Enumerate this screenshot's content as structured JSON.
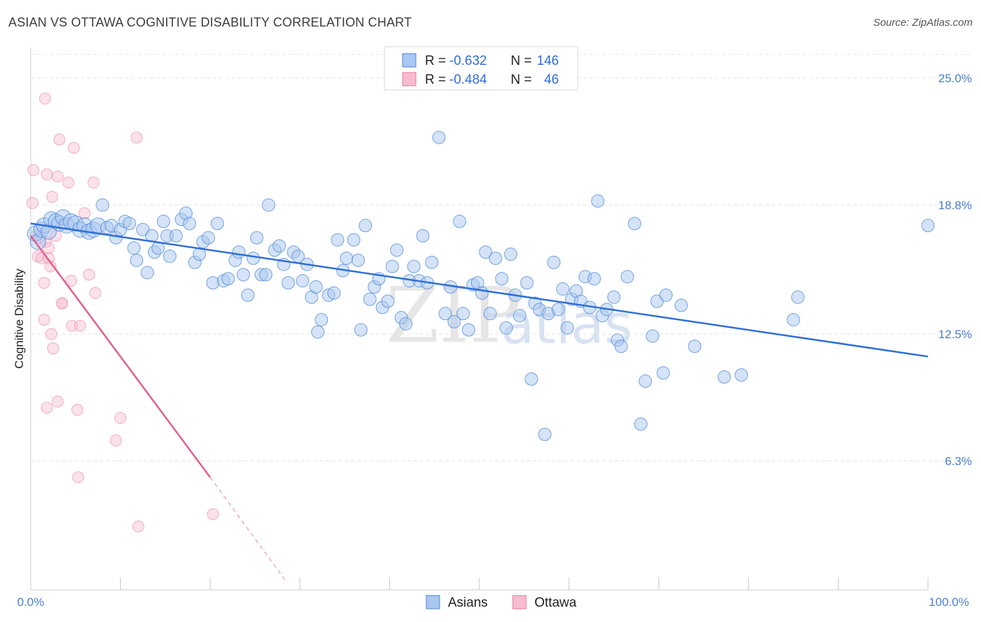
{
  "title": "ASIAN VS OTTAWA COGNITIVE DISABILITY CORRELATION CHART",
  "source": "Source: ZipAtlas.com",
  "watermark": {
    "zip": "ZIP",
    "atlas": "atlas"
  },
  "colors": {
    "asian": "#4a86d8",
    "asian_fill": "#a9c7ef",
    "ottawa": "#e8739a",
    "ottawa_fill": "#f7bcd0",
    "grid": "#e3e3e3",
    "axis_text": "#4a7fd4"
  },
  "legend_top": [
    {
      "r_label": "R =",
      "r_value": "-0.632",
      "n_label": "N =",
      "n_value": "146"
    },
    {
      "r_label": "R =",
      "r_value": "-0.484",
      "n_label": "N =",
      "n_value": "46"
    }
  ],
  "chart_data": {
    "type": "scatter",
    "title": "ASIAN VS OTTAWA COGNITIVE DISABILITY CORRELATION CHART",
    "xlabel": "",
    "ylabel": "Cognitive Disability",
    "xlim": [
      0,
      100
    ],
    "ylim": [
      0,
      26.5
    ],
    "x_tick_labels": [
      "0.0%",
      "100.0%"
    ],
    "y_ticks": [
      6.3,
      12.5,
      18.8,
      25.0
    ],
    "y_tick_labels": [
      "6.3%",
      "12.5%",
      "18.8%",
      "25.0%"
    ],
    "grid": "horizontal dashed",
    "legend_bottom": [
      "Asians",
      "Ottawa"
    ],
    "series": [
      {
        "name": "Asians",
        "trend": [
          [
            0,
            17.9
          ],
          [
            100,
            11.4
          ]
        ],
        "points": [
          [
            0.5,
            17.4
          ],
          [
            0.8,
            17.0
          ],
          [
            1.2,
            17.6
          ],
          [
            1.5,
            17.8
          ],
          [
            2.0,
            17.5
          ],
          [
            2.3,
            18.1
          ],
          [
            2.8,
            18.0
          ],
          [
            3.2,
            17.9
          ],
          [
            3.6,
            18.2
          ],
          [
            4.0,
            17.8
          ],
          [
            4.5,
            18.0
          ],
          [
            5.0,
            17.9
          ],
          [
            5.5,
            17.6
          ],
          [
            6.0,
            17.8
          ],
          [
            6.5,
            17.5
          ],
          [
            7.0,
            17.6
          ],
          [
            7.5,
            17.8
          ],
          [
            8.0,
            18.8
          ],
          [
            8.5,
            17.7
          ],
          [
            9.0,
            17.8
          ],
          [
            9.5,
            17.2
          ],
          [
            10.0,
            17.6
          ],
          [
            10.5,
            18.0
          ],
          [
            11.0,
            17.9
          ],
          [
            11.5,
            16.7
          ],
          [
            11.8,
            16.1
          ],
          [
            12.5,
            17.6
          ],
          [
            13.0,
            15.5
          ],
          [
            13.5,
            17.3
          ],
          [
            13.8,
            16.5
          ],
          [
            14.2,
            16.7
          ],
          [
            14.8,
            18.0
          ],
          [
            15.2,
            17.3
          ],
          [
            15.5,
            16.3
          ],
          [
            16.2,
            17.3
          ],
          [
            16.8,
            18.1
          ],
          [
            17.3,
            18.4
          ],
          [
            17.7,
            17.9
          ],
          [
            18.3,
            16.0
          ],
          [
            18.8,
            16.4
          ],
          [
            19.2,
            17.0
          ],
          [
            19.8,
            17.2
          ],
          [
            20.3,
            15.0
          ],
          [
            20.8,
            17.9
          ],
          [
            21.5,
            15.1
          ],
          [
            22.0,
            15.2
          ],
          [
            22.8,
            16.1
          ],
          [
            23.2,
            16.5
          ],
          [
            23.7,
            15.4
          ],
          [
            24.2,
            14.4
          ],
          [
            24.8,
            16.2
          ],
          [
            25.2,
            17.2
          ],
          [
            25.7,
            15.4
          ],
          [
            26.2,
            15.4
          ],
          [
            26.5,
            18.8
          ],
          [
            27.2,
            16.6
          ],
          [
            27.7,
            16.8
          ],
          [
            28.2,
            15.9
          ],
          [
            28.7,
            15.0
          ],
          [
            29.3,
            16.5
          ],
          [
            29.8,
            16.3
          ],
          [
            30.3,
            15.1
          ],
          [
            30.8,
            15.9
          ],
          [
            31.3,
            14.3
          ],
          [
            31.8,
            14.8
          ],
          [
            32.4,
            13.2
          ],
          [
            32.0,
            12.6
          ],
          [
            33.2,
            14.4
          ],
          [
            33.8,
            14.5
          ],
          [
            34.2,
            17.1
          ],
          [
            34.8,
            15.6
          ],
          [
            35.2,
            16.2
          ],
          [
            36.0,
            17.1
          ],
          [
            36.5,
            16.1
          ],
          [
            36.8,
            12.7
          ],
          [
            37.3,
            17.8
          ],
          [
            37.8,
            14.2
          ],
          [
            38.3,
            14.8
          ],
          [
            38.8,
            15.2
          ],
          [
            39.2,
            13.8
          ],
          [
            39.8,
            14.1
          ],
          [
            40.3,
            15.8
          ],
          [
            40.8,
            16.6
          ],
          [
            41.3,
            13.3
          ],
          [
            41.8,
            13.0
          ],
          [
            42.2,
            15.1
          ],
          [
            42.7,
            15.8
          ],
          [
            43.3,
            15.1
          ],
          [
            43.7,
            17.3
          ],
          [
            44.2,
            15.0
          ],
          [
            44.7,
            16.0
          ],
          [
            45.5,
            22.1
          ],
          [
            46.2,
            13.5
          ],
          [
            46.8,
            14.8
          ],
          [
            47.2,
            13.1
          ],
          [
            47.8,
            18.0
          ],
          [
            48.2,
            13.5
          ],
          [
            48.8,
            12.7
          ],
          [
            49.3,
            14.9
          ],
          [
            49.8,
            15.0
          ],
          [
            50.3,
            14.5
          ],
          [
            50.7,
            16.5
          ],
          [
            51.2,
            13.5
          ],
          [
            51.8,
            16.2
          ],
          [
            52.5,
            15.2
          ],
          [
            53.0,
            12.8
          ],
          [
            53.5,
            16.4
          ],
          [
            54.0,
            14.4
          ],
          [
            54.5,
            13.4
          ],
          [
            55.3,
            15.0
          ],
          [
            55.8,
            10.3
          ],
          [
            56.2,
            14.0
          ],
          [
            56.7,
            13.7
          ],
          [
            57.3,
            7.6
          ],
          [
            57.7,
            13.5
          ],
          [
            58.3,
            16.0
          ],
          [
            58.8,
            13.7
          ],
          [
            59.3,
            14.7
          ],
          [
            59.8,
            12.8
          ],
          [
            60.3,
            14.2
          ],
          [
            60.8,
            14.6
          ],
          [
            61.3,
            14.1
          ],
          [
            61.8,
            15.3
          ],
          [
            62.3,
            13.8
          ],
          [
            62.8,
            15.2
          ],
          [
            63.2,
            19.0
          ],
          [
            63.7,
            13.4
          ],
          [
            64.2,
            13.7
          ],
          [
            65.0,
            14.3
          ],
          [
            65.4,
            12.2
          ],
          [
            65.8,
            11.9
          ],
          [
            66.5,
            15.3
          ],
          [
            67.3,
            17.9
          ],
          [
            68.5,
            10.2
          ],
          [
            68.0,
            8.1
          ],
          [
            69.3,
            12.4
          ],
          [
            69.8,
            14.1
          ],
          [
            70.5,
            10.6
          ],
          [
            70.8,
            14.4
          ],
          [
            72.5,
            13.9
          ],
          [
            74.0,
            11.9
          ],
          [
            77.3,
            10.4
          ],
          [
            79.2,
            10.5
          ],
          [
            85.0,
            13.2
          ],
          [
            85.5,
            14.3
          ],
          [
            100.0,
            17.8
          ]
        ]
      },
      {
        "name": "Ottawa",
        "trend_solid": [
          [
            0,
            17.3
          ],
          [
            20,
            5.5
          ]
        ],
        "trend_dashed": [
          [
            20,
            5.5
          ],
          [
            28.5,
            0.4
          ]
        ],
        "points": [
          [
            0.2,
            18.9
          ],
          [
            0.3,
            20.5
          ],
          [
            0.6,
            17.3
          ],
          [
            0.8,
            16.3
          ],
          [
            1.0,
            17.2
          ],
          [
            1.2,
            16.2
          ],
          [
            1.5,
            13.2
          ],
          [
            1.5,
            15.0
          ],
          [
            1.6,
            24.0
          ],
          [
            1.7,
            17.0
          ],
          [
            1.8,
            8.9
          ],
          [
            1.8,
            20.3
          ],
          [
            2.0,
            16.2
          ],
          [
            2.0,
            16.7
          ],
          [
            2.2,
            15.8
          ],
          [
            2.3,
            12.5
          ],
          [
            2.4,
            19.2
          ],
          [
            2.5,
            11.8
          ],
          [
            2.8,
            17.3
          ],
          [
            3.0,
            20.2
          ],
          [
            3.0,
            9.2
          ],
          [
            3.2,
            22.0
          ],
          [
            3.5,
            14.0
          ],
          [
            3.5,
            14.0
          ],
          [
            4.2,
            19.9
          ],
          [
            4.5,
            15.1
          ],
          [
            4.6,
            12.9
          ],
          [
            4.8,
            21.6
          ],
          [
            5.2,
            8.8
          ],
          [
            5.3,
            5.5
          ],
          [
            5.5,
            12.9
          ],
          [
            6.0,
            18.4
          ],
          [
            6.5,
            15.4
          ],
          [
            7.0,
            19.9
          ],
          [
            7.2,
            14.5
          ],
          [
            9.5,
            7.3
          ],
          [
            10.0,
            8.4
          ],
          [
            11.8,
            22.1
          ],
          [
            12.0,
            3.1
          ],
          [
            20.3,
            3.7
          ]
        ]
      }
    ]
  }
}
